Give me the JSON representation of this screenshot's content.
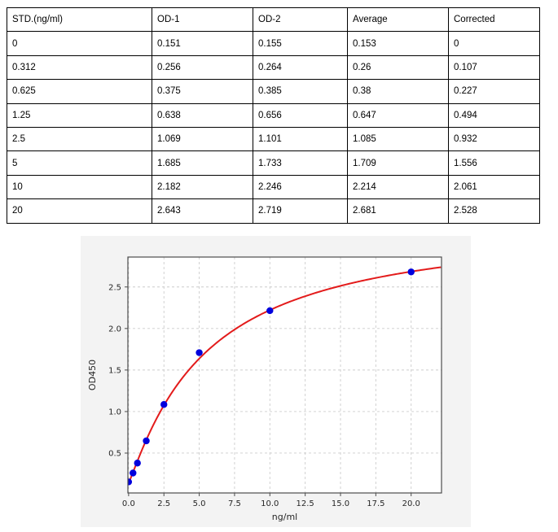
{
  "table": {
    "headers": [
      "STD.(ng/ml)",
      "OD-1",
      "OD-2",
      "Average",
      "Corrected"
    ],
    "rows": [
      [
        "0",
        "0.151",
        "0.155",
        "0.153",
        "0"
      ],
      [
        "0.312",
        "0.256",
        "0.264",
        "0.26",
        "0.107"
      ],
      [
        "0.625",
        "0.375",
        "0.385",
        "0.38",
        "0.227"
      ],
      [
        "1.25",
        "0.638",
        "0.656",
        "0.647",
        "0.494"
      ],
      [
        "2.5",
        "1.069",
        "1.101",
        "1.085",
        "0.932"
      ],
      [
        "5",
        "1.685",
        "1.733",
        "1.709",
        "1.556"
      ],
      [
        "10",
        "2.182",
        "2.246",
        "2.214",
        "2.061"
      ],
      [
        "20",
        "2.643",
        "2.719",
        "2.681",
        "2.528"
      ]
    ]
  },
  "chart_data": {
    "type": "scatter",
    "title": "",
    "xlabel": "ng/ml",
    "ylabel": "OD450",
    "x": [
      0,
      0.312,
      0.625,
      1.25,
      2.5,
      5,
      10,
      20
    ],
    "y": [
      0.153,
      0.26,
      0.38,
      0.647,
      1.085,
      1.709,
      2.214,
      2.681
    ],
    "xlim": [
      -0.05,
      22.15
    ],
    "ylim": [
      0.02,
      2.86
    ],
    "xticks": [
      0.0,
      2.5,
      5.0,
      7.5,
      10.0,
      12.5,
      15.0,
      17.5,
      20.0
    ],
    "yticks": [
      0.5,
      1.0,
      1.5,
      2.0,
      2.5
    ],
    "xtick_labels": [
      "0.0",
      "2.5",
      "5.0",
      "7.5",
      "10.0",
      "12.5",
      "15.0",
      "17.5",
      "20.0"
    ],
    "ytick_labels": [
      "0.5",
      "1.0",
      "1.5",
      "2.0",
      "2.5"
    ],
    "grid": true,
    "legend": "none",
    "fit": {
      "model": "4PL",
      "a": 0.14,
      "b": 1.1,
      "c": 5.5,
      "d": 3.3
    },
    "colors": {
      "point": "#0000dd",
      "curve": "#e31b1b",
      "figure_bg": "#f3f3f3",
      "plot_bg": "#ffffff",
      "grid": "#cccccc",
      "spine": "#4d4d4d",
      "tick_text": "#262626"
    }
  }
}
